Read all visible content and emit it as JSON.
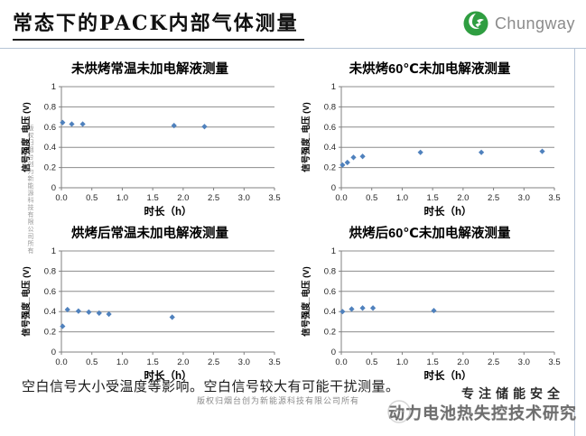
{
  "header": {
    "title": "常态下的PACK内部气体测量",
    "logo_text": "Chungway",
    "logo_green": "#2f9e41",
    "rule_color": "#b6c4d6"
  },
  "chart_data": [
    {
      "type": "scatter",
      "title": "未烘烤常温未加电解液测量",
      "xlabel": "时长（h）",
      "ylabel": "信号强度_电压 (V)",
      "xlim": [
        0,
        3.5
      ],
      "ylim": [
        0,
        1
      ],
      "xticks": [
        "0.0",
        "0.5",
        "1.0",
        "1.5",
        "2.0",
        "2.5",
        "3.0",
        "3.5"
      ],
      "yticks": [
        "0",
        "0.2",
        "0.4",
        "0.6",
        "0.8",
        "1"
      ],
      "grid": "horizontal",
      "legend": "none",
      "marker_color": "#4F81BD",
      "points": [
        [
          0.02,
          0.645
        ],
        [
          0.17,
          0.63
        ],
        [
          0.35,
          0.63
        ],
        [
          1.85,
          0.615
        ],
        [
          2.35,
          0.605
        ]
      ]
    },
    {
      "type": "scatter",
      "title": "未烘烤60℃未加电解液测量",
      "xlabel": "时长（h）",
      "ylabel": "信号强度_电压 (V)",
      "xlim": [
        0,
        3.5
      ],
      "ylim": [
        0,
        1
      ],
      "xticks": [
        "0.0",
        "0.5",
        "1.0",
        "1.5",
        "2.0",
        "2.5",
        "3.0",
        "3.5"
      ],
      "yticks": [
        "0",
        "0.2",
        "0.4",
        "0.6",
        "0.8",
        "1"
      ],
      "grid": "horizontal",
      "legend": "none",
      "marker_color": "#4F81BD",
      "points": [
        [
          0.02,
          0.225
        ],
        [
          0.1,
          0.25
        ],
        [
          0.2,
          0.3
        ],
        [
          0.35,
          0.31
        ],
        [
          1.3,
          0.35
        ],
        [
          2.3,
          0.35
        ],
        [
          3.3,
          0.36
        ]
      ]
    },
    {
      "type": "scatter",
      "title": "烘烤后常温未加电解液测量",
      "xlabel": "时长（h）",
      "ylabel": "信号强度_电压 (V)",
      "xlim": [
        0,
        3.5
      ],
      "ylim": [
        0,
        1
      ],
      "xticks": [
        "0.0",
        "0.5",
        "1.0",
        "1.5",
        "2.0",
        "2.5",
        "3.0",
        "3.5"
      ],
      "yticks": [
        "0",
        "0.2",
        "0.4",
        "0.6",
        "0.8",
        "1"
      ],
      "grid": "horizontal",
      "legend": "none",
      "marker_color": "#4F81BD",
      "points": [
        [
          0.02,
          0.255
        ],
        [
          0.1,
          0.42
        ],
        [
          0.28,
          0.405
        ],
        [
          0.45,
          0.395
        ],
        [
          0.62,
          0.385
        ],
        [
          0.78,
          0.375
        ],
        [
          1.82,
          0.345
        ]
      ]
    },
    {
      "type": "scatter",
      "title": "烘烤后60℃未加电解液测量",
      "xlabel": "时长（h）",
      "ylabel": "信号强度_电压 (V)",
      "xlim": [
        0,
        3.5
      ],
      "ylim": [
        0,
        1
      ],
      "xticks": [
        "0.0",
        "0.5",
        "1.0",
        "1.5",
        "2.0",
        "2.5",
        "3.0",
        "3.5"
      ],
      "yticks": [
        "0",
        "0.2",
        "0.4",
        "0.6",
        "0.8",
        "1"
      ],
      "grid": "horizontal",
      "legend": "none",
      "marker_color": "#4F81BD",
      "points": [
        [
          0.02,
          0.4
        ],
        [
          0.17,
          0.425
        ],
        [
          0.35,
          0.435
        ],
        [
          0.52,
          0.435
        ],
        [
          1.52,
          0.41
        ]
      ]
    }
  ],
  "footer": {
    "note": "空白信号大小受温度等影响。空白信号较大有可能干扰测量。",
    "copyright": "版权归烟台创为新能源科技有限公司所有",
    "side_watermark": "版权归烟台创为新能源科技有限公司所有",
    "slogan": "专注储能安全",
    "research": "动力电池热失控技术研究"
  },
  "style": {
    "gridline_color": "#8c8c8c",
    "axis_color": "#808080",
    "tick_text_color": "#262626"
  }
}
